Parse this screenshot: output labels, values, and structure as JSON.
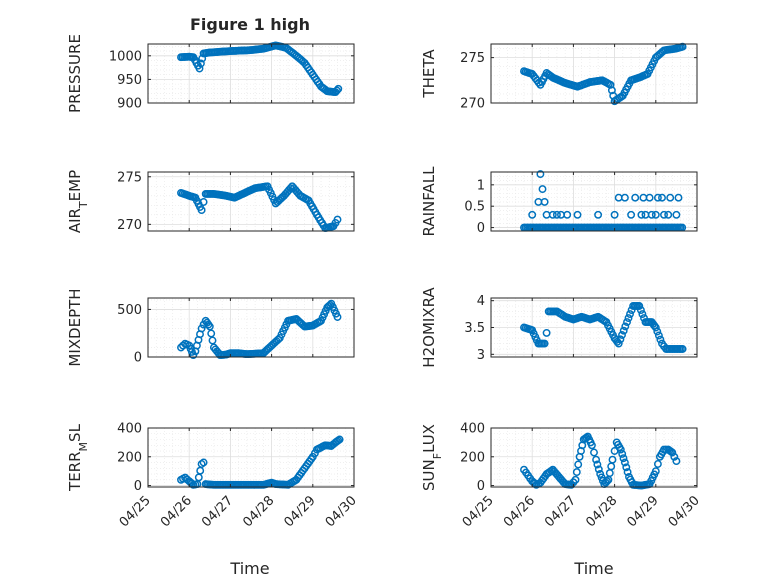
{
  "figure": {
    "title": "Figure 1 high",
    "xlabel": "Time",
    "x_tick_labels": [
      "04/25",
      "04/26",
      "04/27",
      "04/28",
      "04/29",
      "04/30"
    ],
    "marker_color": "#0072BD"
  },
  "chart_data": [
    {
      "type": "scatter",
      "title": "Figure 1 high",
      "ylabel": "PRESSURE",
      "ylim": [
        900,
        1025
      ],
      "yticks": [
        900,
        950,
        1000
      ],
      "x_range": [
        0,
        5
      ],
      "x_tick_labels": [
        "04/25",
        "04/26",
        "04/27",
        "04/28",
        "04/29",
        "04/30"
      ],
      "grid": true,
      "keypoints": [
        [
          0.8,
          997
        ],
        [
          1.0,
          998
        ],
        [
          1.1,
          997
        ],
        [
          1.25,
          973
        ],
        [
          1.35,
          1005
        ],
        [
          1.5,
          1007
        ],
        [
          2.0,
          1010
        ],
        [
          2.5,
          1012
        ],
        [
          2.8,
          1015
        ],
        [
          3.1,
          1022
        ],
        [
          3.35,
          1017
        ],
        [
          3.6,
          1000
        ],
        [
          3.8,
          985
        ],
        [
          4.0,
          960
        ],
        [
          4.2,
          935
        ],
        [
          4.35,
          925
        ],
        [
          4.55,
          923
        ],
        [
          4.62,
          930
        ]
      ]
    },
    {
      "type": "scatter",
      "title": "",
      "ylabel": "THETA",
      "ylim": [
        270,
        276.5
      ],
      "yticks": [
        270,
        275
      ],
      "x_range": [
        0,
        5
      ],
      "x_tick_labels": [
        "04/25",
        "04/26",
        "04/27",
        "04/28",
        "04/29",
        "04/30"
      ],
      "grid": true,
      "keypoints": [
        [
          0.8,
          273.5
        ],
        [
          1.0,
          273.2
        ],
        [
          1.2,
          272.0
        ],
        [
          1.35,
          273.3
        ],
        [
          1.5,
          272.8
        ],
        [
          1.8,
          272.2
        ],
        [
          2.1,
          271.8
        ],
        [
          2.4,
          272.3
        ],
        [
          2.7,
          272.5
        ],
        [
          2.9,
          272.0
        ],
        [
          3.0,
          270.2
        ],
        [
          3.2,
          270.8
        ],
        [
          3.4,
          272.5
        ],
        [
          3.6,
          272.8
        ],
        [
          3.8,
          273.2
        ],
        [
          4.0,
          275.0
        ],
        [
          4.2,
          275.8
        ],
        [
          4.5,
          276.0
        ],
        [
          4.65,
          276.2
        ]
      ]
    },
    {
      "type": "scatter",
      "title": "",
      "ylabel": "AIR_TEMP",
      "ylim": [
        269.3,
        275.5
      ],
      "yticks": [
        270,
        275
      ],
      "x_range": [
        0,
        5
      ],
      "x_tick_labels": [
        "04/25",
        "04/26",
        "04/27",
        "04/28",
        "04/29",
        "04/30"
      ],
      "grid": true,
      "keypoints": [
        [
          0.8,
          273.3
        ],
        [
          1.0,
          273.0
        ],
        [
          1.15,
          272.8
        ],
        [
          1.3,
          271.5
        ],
        [
          1.4,
          273.2
        ],
        [
          1.6,
          273.2
        ],
        [
          1.9,
          273.0
        ],
        [
          2.1,
          272.8
        ],
        [
          2.3,
          273.2
        ],
        [
          2.6,
          273.8
        ],
        [
          2.9,
          274.0
        ],
        [
          3.1,
          272.2
        ],
        [
          3.3,
          273.0
        ],
        [
          3.5,
          274.0
        ],
        [
          3.7,
          273.0
        ],
        [
          3.9,
          272.5
        ],
        [
          4.1,
          271.0
        ],
        [
          4.3,
          269.6
        ],
        [
          4.5,
          269.8
        ],
        [
          4.6,
          270.5
        ]
      ]
    },
    {
      "type": "scatter",
      "title": "",
      "ylabel": "RAINFALL",
      "ylim": [
        -0.08,
        1.3
      ],
      "yticks": [
        0,
        0.5,
        1
      ],
      "y_tick_labels": [
        "0",
        "0.5",
        "1"
      ],
      "x_range": [
        0,
        5
      ],
      "x_tick_labels": [
        "04/25",
        "04/26",
        "04/27",
        "04/28",
        "04/29",
        "04/30"
      ],
      "grid": true,
      "baseline_x": [
        0.8,
        4.65
      ],
      "spikes": [
        [
          1.0,
          0.3
        ],
        [
          1.15,
          0.6
        ],
        [
          1.2,
          1.25
        ],
        [
          1.25,
          0.9
        ],
        [
          1.3,
          0.6
        ],
        [
          1.35,
          0.3
        ],
        [
          1.5,
          0.3
        ],
        [
          1.6,
          0.3
        ],
        [
          1.7,
          0.3
        ],
        [
          1.85,
          0.3
        ],
        [
          2.1,
          0.3
        ],
        [
          2.6,
          0.3
        ],
        [
          3.0,
          0.3
        ],
        [
          3.1,
          0.7
        ],
        [
          3.25,
          0.7
        ],
        [
          3.4,
          0.3
        ],
        [
          3.5,
          0.7
        ],
        [
          3.65,
          0.3
        ],
        [
          3.7,
          0.7
        ],
        [
          3.75,
          0.3
        ],
        [
          3.85,
          0.7
        ],
        [
          3.9,
          0.3
        ],
        [
          4.0,
          0.3
        ],
        [
          4.05,
          0.7
        ],
        [
          4.15,
          0.7
        ],
        [
          4.2,
          0.3
        ],
        [
          4.3,
          0.3
        ],
        [
          4.35,
          0.7
        ],
        [
          4.5,
          0.3
        ],
        [
          4.55,
          0.7
        ]
      ]
    },
    {
      "type": "scatter",
      "title": "",
      "ylabel": "MIXDEPTH",
      "ylim": [
        0,
        620
      ],
      "yticks": [
        0,
        500
      ],
      "x_range": [
        0,
        5
      ],
      "x_tick_labels": [
        "04/25",
        "04/26",
        "04/27",
        "04/28",
        "04/29",
        "04/30"
      ],
      "grid": true,
      "keypoints": [
        [
          0.8,
          100
        ],
        [
          0.9,
          140
        ],
        [
          1.0,
          120
        ],
        [
          1.1,
          20
        ],
        [
          1.15,
          60
        ],
        [
          1.3,
          300
        ],
        [
          1.4,
          380
        ],
        [
          1.5,
          320
        ],
        [
          1.6,
          100
        ],
        [
          1.75,
          20
        ],
        [
          1.9,
          25
        ],
        [
          2.0,
          40
        ],
        [
          2.2,
          40
        ],
        [
          2.4,
          30
        ],
        [
          2.6,
          35
        ],
        [
          2.8,
          40
        ],
        [
          3.0,
          120
        ],
        [
          3.2,
          200
        ],
        [
          3.4,
          380
        ],
        [
          3.6,
          400
        ],
        [
          3.8,
          320
        ],
        [
          4.0,
          330
        ],
        [
          4.2,
          380
        ],
        [
          4.35,
          520
        ],
        [
          4.45,
          560
        ],
        [
          4.6,
          420
        ]
      ]
    },
    {
      "type": "scatter",
      "title": "",
      "ylabel": "H2OMIXRA",
      "ylim": [
        2.95,
        4.05
      ],
      "yticks": [
        3,
        3.5,
        4
      ],
      "y_tick_labels": [
        "3",
        "3.5",
        "4"
      ],
      "x_range": [
        0,
        5
      ],
      "x_tick_labels": [
        "04/25",
        "04/26",
        "04/27",
        "04/28",
        "04/29",
        "04/30"
      ],
      "grid": true,
      "keypoints": [
        [
          0.8,
          3.5
        ],
        [
          1.0,
          3.45
        ],
        [
          1.15,
          3.2
        ],
        [
          1.3,
          3.2
        ],
        [
          1.35,
          3.4
        ],
        [
          1.4,
          3.8
        ],
        [
          1.6,
          3.8
        ],
        [
          1.8,
          3.7
        ],
        [
          2.0,
          3.65
        ],
        [
          2.2,
          3.7
        ],
        [
          2.4,
          3.65
        ],
        [
          2.6,
          3.7
        ],
        [
          2.8,
          3.6
        ],
        [
          3.0,
          3.3
        ],
        [
          3.1,
          3.2
        ],
        [
          3.3,
          3.6
        ],
        [
          3.45,
          3.9
        ],
        [
          3.6,
          3.9
        ],
        [
          3.75,
          3.6
        ],
        [
          3.9,
          3.6
        ],
        [
          4.0,
          3.5
        ],
        [
          4.15,
          3.2
        ],
        [
          4.25,
          3.1
        ],
        [
          4.65,
          3.1
        ]
      ]
    },
    {
      "type": "scatter",
      "title": "",
      "ylabel": "TERR_MSL",
      "ylim": [
        -10,
        400
      ],
      "yticks": [
        0,
        200,
        400
      ],
      "x_range": [
        0,
        5
      ],
      "x_tick_labels": [
        "04/25",
        "04/26",
        "04/27",
        "04/28",
        "04/29",
        "04/30"
      ],
      "grid": true,
      "keypoints": [
        [
          0.8,
          40
        ],
        [
          0.9,
          55
        ],
        [
          1.0,
          30
        ],
        [
          1.1,
          5
        ],
        [
          1.2,
          10
        ],
        [
          1.3,
          150
        ],
        [
          1.35,
          160
        ],
        [
          1.4,
          10
        ],
        [
          1.6,
          5
        ],
        [
          2.0,
          5
        ],
        [
          2.4,
          5
        ],
        [
          2.8,
          5
        ],
        [
          3.0,
          20
        ],
        [
          3.1,
          10
        ],
        [
          3.4,
          5
        ],
        [
          3.6,
          40
        ],
        [
          3.8,
          120
        ],
        [
          4.0,
          200
        ],
        [
          4.1,
          250
        ],
        [
          4.3,
          280
        ],
        [
          4.45,
          275
        ],
        [
          4.55,
          300
        ],
        [
          4.65,
          320
        ]
      ]
    },
    {
      "type": "scatter",
      "title": "",
      "ylabel": "SUN_FLUX",
      "ylim": [
        -10,
        400
      ],
      "yticks": [
        0,
        200,
        400
      ],
      "x_range": [
        0,
        5
      ],
      "x_tick_labels": [
        "04/25",
        "04/26",
        "04/27",
        "04/28",
        "04/29",
        "04/30"
      ],
      "grid": true,
      "keypoints": [
        [
          0.8,
          110
        ],
        [
          0.9,
          70
        ],
        [
          1.0,
          30
        ],
        [
          1.1,
          5
        ],
        [
          1.2,
          20
        ],
        [
          1.35,
          80
        ],
        [
          1.5,
          110
        ],
        [
          1.65,
          60
        ],
        [
          1.8,
          10
        ],
        [
          1.95,
          5
        ],
        [
          2.05,
          40
        ],
        [
          2.15,
          200
        ],
        [
          2.25,
          320
        ],
        [
          2.35,
          340
        ],
        [
          2.45,
          280
        ],
        [
          2.55,
          180
        ],
        [
          2.65,
          80
        ],
        [
          2.75,
          10
        ],
        [
          2.85,
          40
        ],
        [
          2.95,
          180
        ],
        [
          3.05,
          300
        ],
        [
          3.15,
          250
        ],
        [
          3.25,
          160
        ],
        [
          3.35,
          60
        ],
        [
          3.45,
          5
        ],
        [
          3.65,
          0
        ],
        [
          3.85,
          10
        ],
        [
          4.0,
          100
        ],
        [
          4.1,
          200
        ],
        [
          4.2,
          250
        ],
        [
          4.3,
          250
        ],
        [
          4.4,
          230
        ],
        [
          4.5,
          170
        ]
      ]
    }
  ]
}
